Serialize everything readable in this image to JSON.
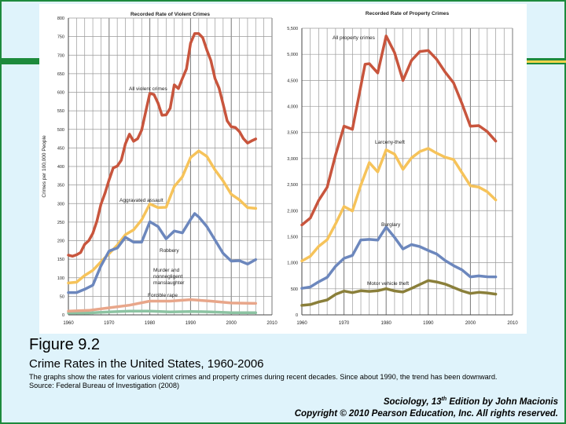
{
  "figure": {
    "title": "Figure 9.2",
    "subtitle": "Crime Rates in the United States, 1960-2006",
    "note_line1": "The graphs show the rates for various violent crimes and property crimes during recent decades. Since about 1990, the trend has been downward.",
    "note_line2": "Source: Federal Bureau of Investigation (2008)",
    "credit_line1_prefix": "Sociology, 13",
    "credit_line1_sup": "th",
    "credit_line1_suffix": " Edition by John Macionis",
    "credit_line2": "Copyright © 2010 Pearson Education, Inc. All rights reserved."
  },
  "colors": {
    "frame": "#1d8a3c",
    "band_accent": "#f3d34a",
    "background": "#dff3fb",
    "all_violent": "#c8553d",
    "aggravated": "#f6c35a",
    "robbery": "#6c87bd",
    "murder": "#8cc3a2",
    "rape": "#e8a68a",
    "all_property": "#c8553d",
    "larceny": "#f6c35a",
    "burglary": "#6c87bd",
    "motor": "#8a7f3a"
  },
  "chart_data": [
    {
      "type": "line",
      "title": "Recorded Rate of Violent Crimes",
      "ylabel": "Crimes per 100,000 People",
      "xlim": [
        1960,
        2010
      ],
      "ylim": [
        0,
        800
      ],
      "xticks": [
        "1960",
        "1970",
        "1980",
        "1990",
        "2000",
        "2010"
      ],
      "yticks": [
        "0",
        "50",
        "100",
        "150",
        "200",
        "250",
        "300",
        "350",
        "400",
        "450",
        "500",
        "550",
        "600",
        "650",
        "700",
        "750",
        "800"
      ],
      "grid": true,
      "series": [
        {
          "name": "All violent crimes",
          "color_key": "all_violent",
          "x": [
            1960,
            1961,
            1962,
            1963,
            1964,
            1965,
            1966,
            1967,
            1968,
            1969,
            1970,
            1971,
            1972,
            1973,
            1974,
            1975,
            1976,
            1977,
            1978,
            1979,
            1980,
            1981,
            1982,
            1983,
            1984,
            1985,
            1986,
            1987,
            1988,
            1989,
            1990,
            1991,
            1992,
            1993,
            1994,
            1995,
            1996,
            1997,
            1998,
            1999,
            2000,
            2001,
            2002,
            2003,
            2004,
            2005,
            2006
          ],
          "y": [
            161,
            158,
            162,
            168,
            190,
            200,
            220,
            253,
            298,
            328,
            364,
            396,
            401,
            417,
            461,
            487,
            468,
            475,
            498,
            548,
            597,
            594,
            571,
            538,
            539,
            557,
            620,
            610,
            637,
            663,
            732,
            758,
            758,
            747,
            714,
            685,
            637,
            611,
            568,
            523,
            507,
            505,
            494,
            475,
            463,
            469,
            474
          ]
        },
        {
          "name": "Aggravated assault",
          "color_key": "aggravated",
          "x": [
            1960,
            1962,
            1964,
            1966,
            1968,
            1970,
            1972,
            1974,
            1976,
            1978,
            1980,
            1982,
            1984,
            1986,
            1988,
            1990,
            1992,
            1994,
            1996,
            1998,
            2000,
            2002,
            2004,
            2006
          ],
          "y": [
            86,
            88,
            106,
            120,
            143,
            165,
            188,
            216,
            229,
            256,
            299,
            289,
            290,
            346,
            372,
            424,
            442,
            427,
            391,
            361,
            325,
            310,
            289,
            287
          ]
        },
        {
          "name": "Robbery",
          "color_key": "robbery",
          "x": [
            1960,
            1962,
            1964,
            1966,
            1968,
            1970,
            1972,
            1974,
            1976,
            1978,
            1980,
            1982,
            1984,
            1986,
            1988,
            1990,
            1991,
            1992,
            1994,
            1996,
            1998,
            2000,
            2002,
            2004,
            2006
          ],
          "y": [
            60,
            60,
            69,
            80,
            132,
            172,
            180,
            209,
            196,
            196,
            251,
            238,
            205,
            226,
            221,
            257,
            273,
            264,
            238,
            202,
            166,
            145,
            146,
            137,
            149
          ]
        },
        {
          "name": "Murder and nonnegligent manslaughter",
          "color_key": "murder",
          "x": [
            1960,
            1965,
            1970,
            1975,
            1980,
            1985,
            1990,
            1995,
            2000,
            2006
          ],
          "y": [
            5,
            5,
            8,
            10,
            10,
            8,
            9,
            8,
            6,
            6
          ]
        },
        {
          "name": "Forcible rape",
          "color_key": "rape",
          "x": [
            1960,
            1965,
            1970,
            1975,
            1980,
            1985,
            1990,
            1995,
            2000,
            2006
          ],
          "y": [
            10,
            12,
            19,
            26,
            37,
            37,
            41,
            37,
            32,
            31
          ]
        }
      ]
    },
    {
      "type": "line",
      "title": "Recorded Rate of Property Crimes",
      "xlim": [
        1960,
        2010
      ],
      "ylim": [
        0,
        5500
      ],
      "xticks": [
        "1960",
        "1970",
        "1980",
        "1990",
        "2000",
        "2010"
      ],
      "yticks": [
        "0",
        "500",
        "1,000",
        "1,500",
        "2,000",
        "2,500",
        "3,000",
        "3,500",
        "4,000",
        "4,500",
        "5,000",
        "5,500"
      ],
      "grid": true,
      "series": [
        {
          "name": "All property crimes",
          "color_key": "all_property",
          "x": [
            1960,
            1962,
            1964,
            1966,
            1968,
            1970,
            1972,
            1974,
            1975,
            1976,
            1978,
            1980,
            1982,
            1984,
            1986,
            1988,
            1990,
            1992,
            1994,
            1996,
            1998,
            2000,
            2002,
            2004,
            2006
          ],
          "y": [
            1726,
            1858,
            2197,
            2450,
            3071,
            3621,
            3560,
            4389,
            4810,
            4820,
            4643,
            5353,
            5033,
            4498,
            4881,
            5054,
            5073,
            4903,
            4660,
            4451,
            4053,
            3619,
            3631,
            3517,
            3335
          ]
        },
        {
          "name": "Larceny-theft",
          "color_key": "larceny",
          "x": [
            1960,
            1962,
            1964,
            1966,
            1968,
            1970,
            1972,
            1974,
            1976,
            1978,
            1980,
            1982,
            1984,
            1986,
            1988,
            1990,
            1992,
            1994,
            1996,
            1998,
            2000,
            2002,
            2004,
            2006
          ],
          "y": [
            1034,
            1124,
            1315,
            1442,
            1746,
            2079,
            1994,
            2489,
            2922,
            2744,
            3167,
            3084,
            2792,
            3010,
            3135,
            3195,
            3103,
            3026,
            2980,
            2729,
            2477,
            2451,
            2362,
            2206
          ]
        },
        {
          "name": "Burglary",
          "color_key": "burglary",
          "x": [
            1960,
            1962,
            1964,
            1966,
            1968,
            1970,
            1972,
            1974,
            1976,
            1978,
            1980,
            1982,
            1984,
            1986,
            1988,
            1990,
            1992,
            1994,
            1996,
            1998,
            2000,
            2002,
            2004,
            2006
          ],
          "y": [
            509,
            535,
            635,
            721,
            932,
            1085,
            1141,
            1438,
            1448,
            1434,
            1684,
            1488,
            1264,
            1349,
            1309,
            1236,
            1168,
            1042,
            945,
            863,
            729,
            747,
            731,
            729
          ]
        },
        {
          "name": "Motor vehicle theft",
          "color_key": "motor",
          "x": [
            1960,
            1962,
            1964,
            1966,
            1968,
            1970,
            1972,
            1974,
            1976,
            1978,
            1980,
            1982,
            1984,
            1986,
            1988,
            1990,
            1992,
            1994,
            1996,
            1998,
            2000,
            2002,
            2004,
            2006
          ],
          "y": [
            183,
            197,
            247,
            287,
            393,
            457,
            426,
            462,
            450,
            462,
            502,
            459,
            438,
            508,
            583,
            658,
            632,
            591,
            526,
            459,
            412,
            433,
            421,
            398
          ]
        }
      ]
    }
  ],
  "annotations": {
    "violent": [
      "All violent crimes",
      "Aggravated assault",
      "Robbery",
      "Murder and",
      "nonnegligent",
      "manslaughter",
      "Forcible rape"
    ],
    "property": [
      "All property crimes",
      "Larceny-theft",
      "Burglary",
      "Motor vehicle theft"
    ]
  }
}
